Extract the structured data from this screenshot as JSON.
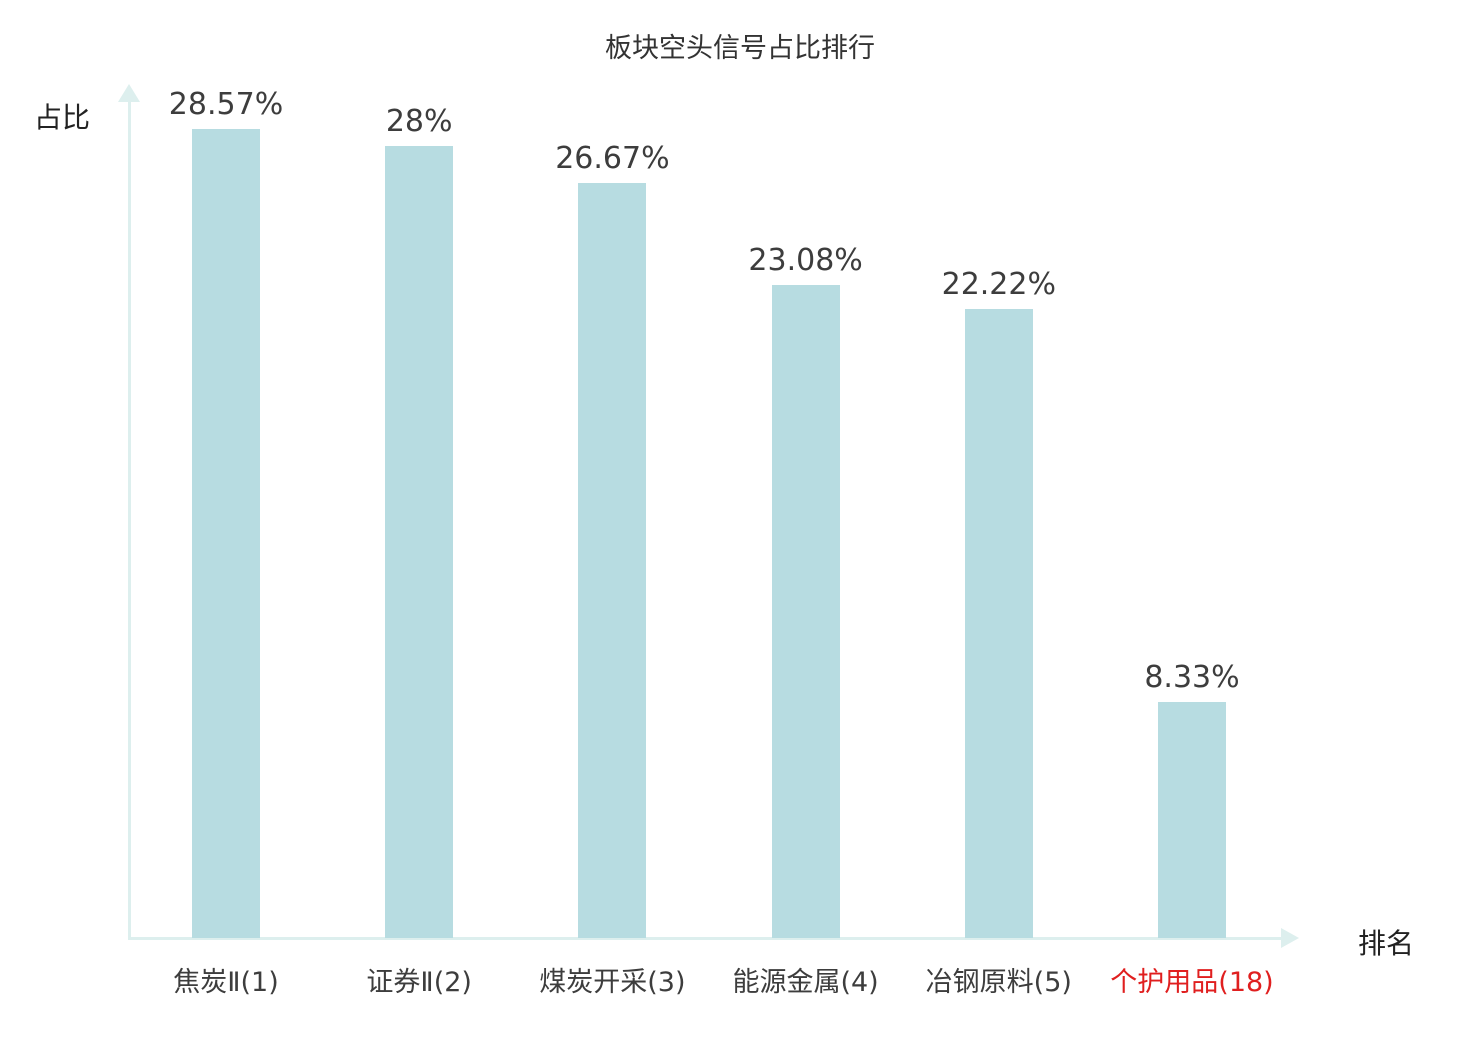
{
  "chart_data": {
    "type": "bar",
    "title": "板块空头信号占比排行",
    "xlabel": "排名",
    "ylabel": "占比",
    "categories": [
      "焦炭Ⅱ(1)",
      "证券Ⅱ(2)",
      "煤炭开采(3)",
      "能源金属(4)",
      "冶钢原料(5)",
      "个护用品(18)"
    ],
    "values": [
      28.57,
      28,
      26.67,
      23.08,
      22.22,
      8.33
    ],
    "value_labels": [
      "28.57%",
      "28%",
      "26.67%",
      "23.08%",
      "22.22%",
      "8.33%"
    ],
    "highlight_index": 5,
    "ylim": [
      0,
      30
    ],
    "grid": false,
    "legend": "none",
    "colors": {
      "bar": "#b7dce1",
      "axis": "#ddefee",
      "label": "#3d3d3d",
      "highlight_label": "#e01f1f"
    }
  }
}
